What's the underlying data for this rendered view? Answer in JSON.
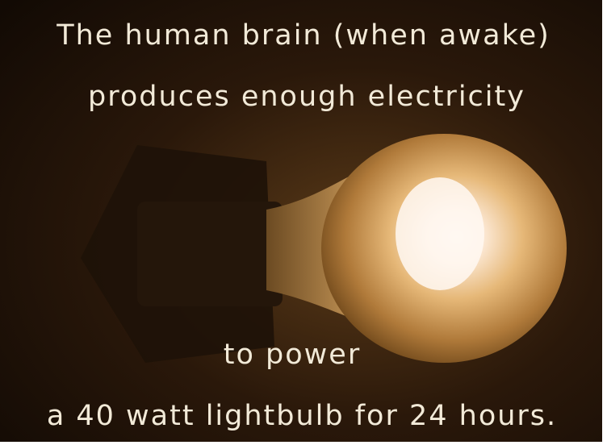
{
  "caption": {
    "lines": [
      "The human brain (when awake)",
      "produces enough electricity",
      "to power",
      "a 40 watt lightbulb for 24 hours."
    ]
  }
}
